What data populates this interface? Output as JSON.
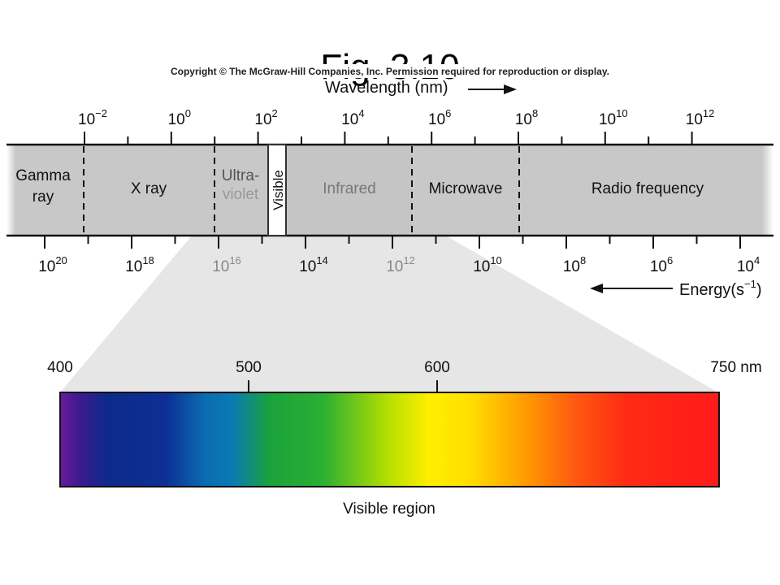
{
  "slide_title": "Fig. 3.10",
  "copyright": "Copyright © The McGraw-Hill Companies, Inc. Permission required for reproduction or display.",
  "wavelength_axis": {
    "label": "Wavelength (nm)",
    "ticks": [
      {
        "base": "10",
        "exp": "−2"
      },
      {
        "base": "10",
        "exp": "0"
      },
      {
        "base": "10",
        "exp": "2"
      },
      {
        "base": "10",
        "exp": "4"
      },
      {
        "base": "10",
        "exp": "6"
      },
      {
        "base": "10",
        "exp": "8"
      },
      {
        "base": "10",
        "exp": "10"
      },
      {
        "base": "10",
        "exp": "12"
      }
    ]
  },
  "energy_axis": {
    "label_main": "Energy",
    "label_unit_open": "(s",
    "label_unit_exp": "−1",
    "label_unit_close": ")",
    "ticks": [
      {
        "base": "10",
        "exp": "20"
      },
      {
        "base": "10",
        "exp": "18"
      },
      {
        "base": "10",
        "exp": "16"
      },
      {
        "base": "10",
        "exp": "14"
      },
      {
        "base": "10",
        "exp": "12"
      },
      {
        "base": "10",
        "exp": "10"
      },
      {
        "base": "10",
        "exp": "8"
      },
      {
        "base": "10",
        "exp": "6"
      },
      {
        "base": "10",
        "exp": "4"
      }
    ]
  },
  "regions": {
    "gamma_line1": "Gamma",
    "gamma_line2": "ray",
    "xray": "X ray",
    "uv_line1": "Ultra-",
    "uv_line2": "violet",
    "visible": "Visible",
    "infrared": "Infrared",
    "microwave": "Microwave",
    "radio": "Radio frequency"
  },
  "visible_region": {
    "label": "Visible region",
    "ticks": [
      "400",
      "500",
      "600",
      "750 nm"
    ]
  },
  "colors": {
    "band_fill": "#c8c8c8",
    "fan_fill": "#e6e6e6",
    "violet": "#6a1b9a",
    "blue": "#0d2a8a",
    "cyan": "#0a7ab5",
    "green": "#1aa33a",
    "yellow": "#ffee00",
    "orange": "#ffa000",
    "red": "#ff1a1a"
  }
}
